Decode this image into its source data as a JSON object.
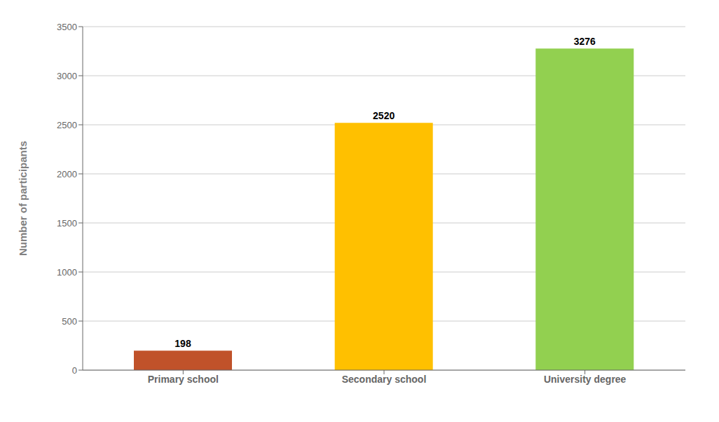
{
  "chart_data": {
    "type": "bar",
    "categories": [
      "Primary school",
      "Secondary school",
      "University degree"
    ],
    "values": [
      198,
      2520,
      3276
    ],
    "colors": [
      "#C0522A",
      "#FFC000",
      "#92D050"
    ],
    "ylabel": "Number of participants",
    "ylim": [
      0,
      3500
    ],
    "yticks": [
      0,
      500,
      1000,
      1500,
      2000,
      2500,
      3000,
      3500
    ],
    "grid": true,
    "data_labels": true
  }
}
